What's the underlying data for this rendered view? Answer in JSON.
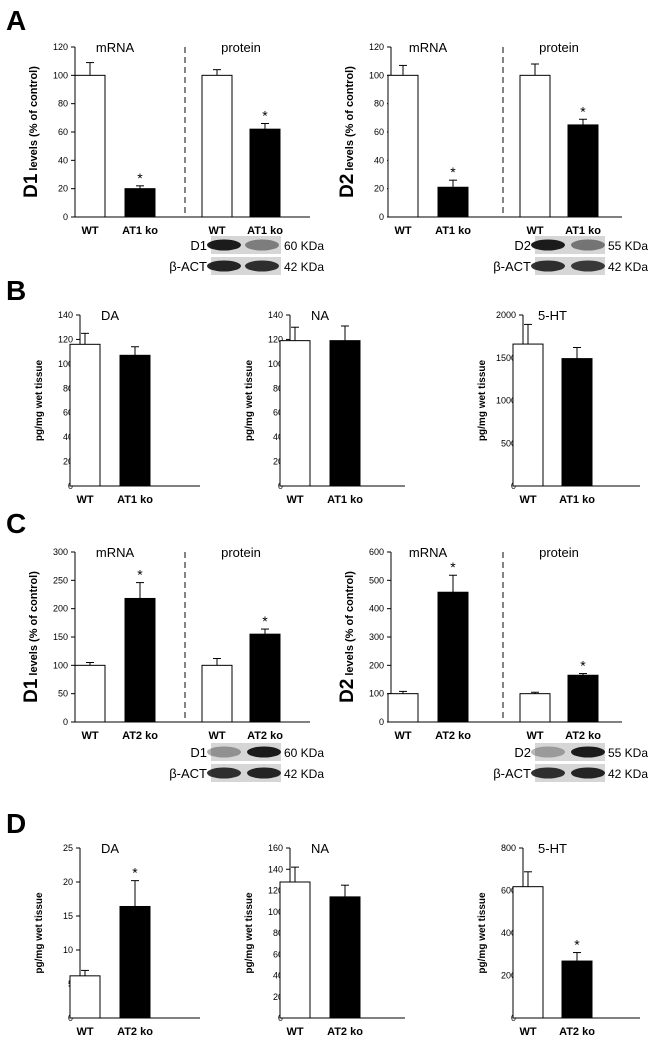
{
  "panel_labels": [
    "A",
    "B",
    "C",
    "D"
  ],
  "units": {
    "pg": "pg/mg wet tissue"
  },
  "markers": {
    "A_D1": [
      {
        "label": "D1",
        "kda": "60 KDa"
      },
      {
        "label": "β-ACT",
        "kda": "42 KDa"
      }
    ],
    "A_D2": [
      {
        "label": "D2",
        "kda": "55 KDa"
      },
      {
        "label": "β-ACT",
        "kda": "42 KDa"
      }
    ],
    "C_D1": [
      {
        "label": "D1",
        "kda": "60 KDa"
      },
      {
        "label": "β-ACT",
        "kda": "42 KDa"
      }
    ],
    "C_D2": [
      {
        "label": "D2",
        "kda": "55 KDa"
      },
      {
        "label": "β-ACT",
        "kda": "42 KDa"
      }
    ]
  },
  "chart_data": [
    {
      "id": "A_D1",
      "type": "bar",
      "ylabel_big": "D1",
      "ylabel_small": "levels (% of control)",
      "ylim": [
        0,
        120
      ],
      "ticks": [
        0,
        20,
        40,
        60,
        80,
        100,
        120
      ],
      "groups": [
        {
          "title": "mRNA",
          "categories": [
            "WT",
            "AT1 ko"
          ],
          "values": [
            100,
            20
          ],
          "errors": [
            9,
            2
          ],
          "colors": [
            "#ffffff",
            "#000000"
          ],
          "sig": [
            false,
            true
          ]
        },
        {
          "title": "protein",
          "categories": [
            "WT",
            "AT1 ko"
          ],
          "values": [
            100,
            62
          ],
          "errors": [
            4,
            4
          ],
          "colors": [
            "#ffffff",
            "#000000"
          ],
          "sig": [
            false,
            true
          ]
        }
      ]
    },
    {
      "id": "A_D2",
      "type": "bar",
      "ylabel_big": "D2",
      "ylabel_small": "levels (% of control)",
      "ylim": [
        0,
        120
      ],
      "ticks": [
        0,
        20,
        40,
        60,
        80,
        100,
        120
      ],
      "groups": [
        {
          "title": "mRNA",
          "categories": [
            "WT",
            "AT1 ko"
          ],
          "values": [
            100,
            21
          ],
          "errors": [
            7,
            5
          ],
          "colors": [
            "#ffffff",
            "#000000"
          ],
          "sig": [
            false,
            true
          ]
        },
        {
          "title": "protein",
          "categories": [
            "WT",
            "AT1 ko"
          ],
          "values": [
            100,
            65
          ],
          "errors": [
            8,
            4
          ],
          "colors": [
            "#ffffff",
            "#000000"
          ],
          "sig": [
            false,
            true
          ]
        }
      ]
    },
    {
      "id": "B_DA",
      "type": "bar",
      "ylabel": "pg/mg wet tissue",
      "ylim": [
        0,
        140
      ],
      "ticks": [
        0,
        20,
        40,
        60,
        80,
        100,
        120,
        140
      ],
      "groups": [
        {
          "title": "DA",
          "categories": [
            "WT",
            "AT1 ko"
          ],
          "values": [
            116,
            107
          ],
          "errors": [
            9,
            7
          ],
          "colors": [
            "#ffffff",
            "#000000"
          ],
          "sig": [
            false,
            false
          ]
        }
      ]
    },
    {
      "id": "B_NA",
      "type": "bar",
      "ylabel": "pg/mg wet tissue",
      "ylim": [
        0,
        140
      ],
      "ticks": [
        0,
        20,
        40,
        60,
        80,
        100,
        120,
        140
      ],
      "groups": [
        {
          "title": "NA",
          "categories": [
            "WT",
            "AT1 ko"
          ],
          "values": [
            119,
            119
          ],
          "errors": [
            11,
            12
          ],
          "colors": [
            "#ffffff",
            "#000000"
          ],
          "sig": [
            false,
            false
          ]
        }
      ]
    },
    {
      "id": "B_5HT",
      "type": "bar",
      "ylabel": "pg/mg wet tissue",
      "ylim": [
        0,
        2000
      ],
      "ticks": [
        0,
        500,
        1000,
        1500,
        2000
      ],
      "groups": [
        {
          "title": "5-HT",
          "categories": [
            "WT",
            "AT1 ko"
          ],
          "values": [
            1660,
            1490
          ],
          "errors": [
            230,
            130
          ],
          "colors": [
            "#ffffff",
            "#000000"
          ],
          "sig": [
            false,
            false
          ]
        }
      ]
    },
    {
      "id": "C_D1",
      "type": "bar",
      "ylabel_big": "D1",
      "ylabel_small": "levels (% of control)",
      "ylim": [
        0,
        300
      ],
      "ticks": [
        0,
        50,
        100,
        150,
        200,
        250,
        300
      ],
      "groups": [
        {
          "title": "mRNA",
          "categories": [
            "WT",
            "AT2 ko"
          ],
          "values": [
            100,
            218
          ],
          "errors": [
            5,
            28
          ],
          "colors": [
            "#ffffff",
            "#000000"
          ],
          "sig": [
            false,
            true
          ]
        },
        {
          "title": "protein",
          "categories": [
            "WT",
            "AT2 ko"
          ],
          "values": [
            100,
            155
          ],
          "errors": [
            12,
            9
          ],
          "colors": [
            "#ffffff",
            "#000000"
          ],
          "sig": [
            false,
            true
          ]
        }
      ]
    },
    {
      "id": "C_D2",
      "type": "bar",
      "ylabel_big": "D2",
      "ylabel_small": "levels (% of control)",
      "ylim": [
        0,
        600
      ],
      "ticks": [
        0,
        100,
        200,
        300,
        400,
        500,
        600
      ],
      "groups": [
        {
          "title": "mRNA",
          "categories": [
            "WT",
            "AT2 ko"
          ],
          "values": [
            100,
            458
          ],
          "errors": [
            8,
            60
          ],
          "colors": [
            "#ffffff",
            "#000000"
          ],
          "sig": [
            false,
            true
          ]
        },
        {
          "title": "protein",
          "categories": [
            "WT",
            "AT2 ko"
          ],
          "values": [
            100,
            165
          ],
          "errors": [
            5,
            6
          ],
          "colors": [
            "#ffffff",
            "#000000"
          ],
          "sig": [
            false,
            true
          ]
        }
      ]
    },
    {
      "id": "D_DA",
      "type": "bar",
      "ylabel": "pg/mg wet tissue",
      "ylim": [
        0,
        25
      ],
      "ticks": [
        0,
        5,
        10,
        15,
        20,
        25
      ],
      "groups": [
        {
          "title": "DA",
          "categories": [
            "WT",
            "AT2 ko"
          ],
          "values": [
            6.2,
            16.4
          ],
          "errors": [
            0.8,
            3.8
          ],
          "colors": [
            "#ffffff",
            "#000000"
          ],
          "sig": [
            false,
            true
          ]
        }
      ]
    },
    {
      "id": "D_NA",
      "type": "bar",
      "ylabel": "pg/mg wet tissue",
      "ylim": [
        0,
        160
      ],
      "ticks": [
        0,
        20,
        40,
        60,
        80,
        100,
        120,
        140,
        160
      ],
      "groups": [
        {
          "title": "NA",
          "categories": [
            "WT",
            "AT2 ko"
          ],
          "values": [
            128,
            114
          ],
          "errors": [
            14,
            11
          ],
          "colors": [
            "#ffffff",
            "#000000"
          ],
          "sig": [
            false,
            false
          ]
        }
      ]
    },
    {
      "id": "D_5HT",
      "type": "bar",
      "ylabel": "pg/mg wet tissue",
      "ylim": [
        0,
        800
      ],
      "ticks": [
        0,
        200,
        400,
        600,
        800
      ],
      "groups": [
        {
          "title": "5-HT",
          "categories": [
            "WT",
            "AT2 ko"
          ],
          "values": [
            618,
            268
          ],
          "errors": [
            70,
            40
          ],
          "colors": [
            "#ffffff",
            "#000000"
          ],
          "sig": [
            false,
            true
          ]
        }
      ]
    }
  ]
}
